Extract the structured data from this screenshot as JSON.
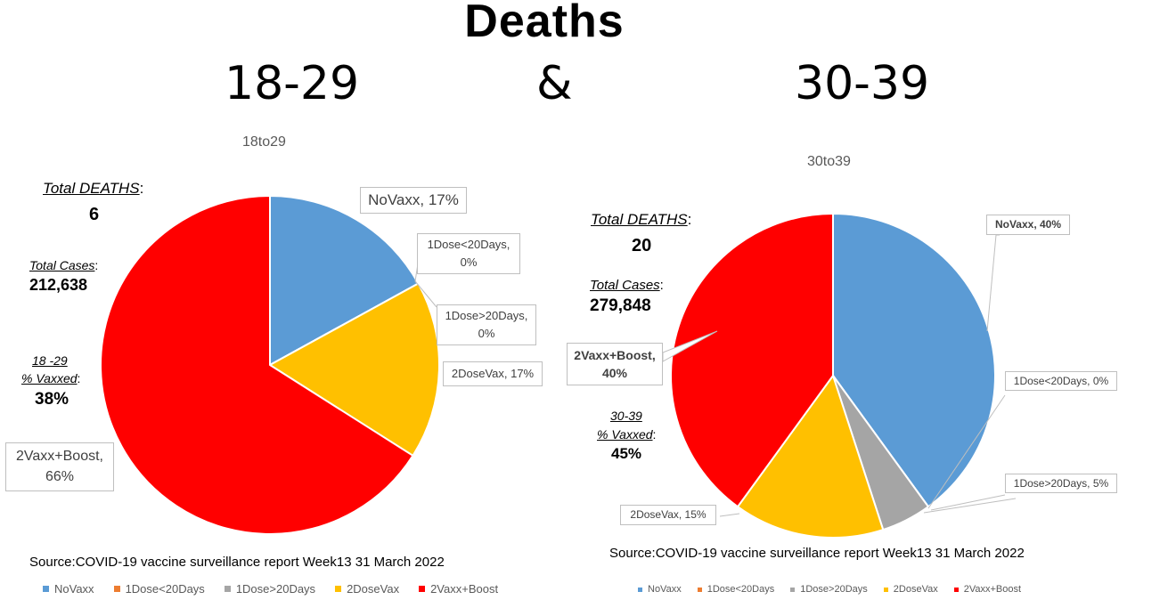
{
  "header": {
    "title": "Deaths",
    "age_left": "18-29",
    "ampersand": "&",
    "age_right": "30-39"
  },
  "colors": {
    "NoVaxx": "#5b9bd5",
    "1Dose<20Days": "#ed7d31",
    "1Dose>20Days": "#a5a5a5",
    "2DoseVax": "#ffc000",
    "2Vaxx+Boost": "#ff0000"
  },
  "left_panel": {
    "total_deaths_label": "Total DEATHS",
    "colon": ":",
    "total_deaths_value": "6",
    "total_cases_label": "Total Cases",
    "total_cases_value": "212,638",
    "vaxxed_label_line1": "18 -29",
    "vaxxed_label_line2": "% Vaxxed",
    "vaxxed_value": "38%",
    "callouts": {
      "novaxx": "NoVaxx, 17%",
      "dose1_lt20_a": "1Dose<20Days,",
      "dose1_lt20_b": "0%",
      "dose1_gt20_a": "1Dose>20Days,",
      "dose1_gt20_b": "0%",
      "dose2": "2DoseVax, 17%",
      "boost_a": "2Vaxx+Boost,",
      "boost_b": "66%"
    }
  },
  "right_panel": {
    "total_deaths_label": "Total DEATHS",
    "colon": ":",
    "total_deaths_value": "20",
    "total_cases_label": "Total Cases",
    "total_cases_value": "279,848",
    "vaxxed_label_line1": "30-39",
    "vaxxed_label_line2": "% Vaxxed",
    "vaxxed_value": "45%",
    "callouts": {
      "novaxx": "NoVaxx, 40%",
      "dose1_lt20": "1Dose<20Days, 0%",
      "dose1_gt20": "1Dose>20Days, 5%",
      "dose2": "2DoseVax, 15%",
      "boost_a": "2Vaxx+Boost,",
      "boost_b": "40%"
    }
  },
  "source_text": "Source:COVID-19 vaccine surveillance report Week13  31 March 2022",
  "chart_data": [
    {
      "type": "pie",
      "title": "18to29",
      "categories": [
        "NoVaxx",
        "1Dose<20Days",
        "1Dose>20Days",
        "2DoseVax",
        "2Vaxx+Boost"
      ],
      "values": [
        17,
        0,
        0,
        17,
        66
      ],
      "legend": [
        "NoVaxx",
        "1Dose<20Days",
        "1Dose>20Days",
        "2DoseVax",
        "2Vaxx+Boost"
      ],
      "legend_position": "bottom"
    },
    {
      "type": "pie",
      "title": "30to39",
      "categories": [
        "NoVaxx",
        "1Dose<20Days",
        "1Dose>20Days",
        "2DoseVax",
        "2Vaxx+Boost"
      ],
      "values": [
        40,
        0,
        5,
        15,
        40
      ],
      "legend": [
        "NoVaxx",
        "1Dose<20Days",
        "1Dose>20Days",
        "2DoseVax",
        "2Vaxx+Boost"
      ],
      "legend_position": "bottom"
    }
  ]
}
